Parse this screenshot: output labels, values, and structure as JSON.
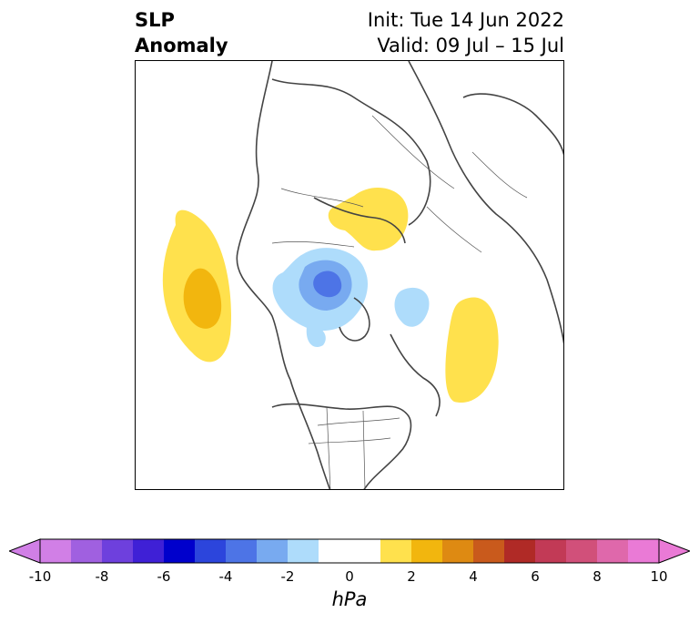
{
  "title": {
    "left_line1": "SLP",
    "left_line2": "Anomaly",
    "right_line1": "Init: Tue 14 Jun 2022",
    "right_line2": "Valid: 09 Jul – 15 Jul"
  },
  "colorbar": {
    "unit": "hPa",
    "range": [
      -10,
      10
    ],
    "tick_labels": [
      "-10",
      "-8",
      "-6",
      "-4",
      "-2",
      "0",
      "2",
      "4",
      "6",
      "8",
      "10"
    ],
    "bins": [
      {
        "from": -10,
        "to": -9,
        "color": "#d17fe6"
      },
      {
        "from": -9,
        "to": -8,
        "color": "#a060e0"
      },
      {
        "from": -8,
        "to": -7,
        "color": "#6e40dd"
      },
      {
        "from": -7,
        "to": -6,
        "color": "#3f20d6"
      },
      {
        "from": -6,
        "to": -5,
        "color": "#0000cc"
      },
      {
        "from": -5,
        "to": -4,
        "color": "#2c45dc"
      },
      {
        "from": -4,
        "to": -3,
        "color": "#4d74e6"
      },
      {
        "from": -3,
        "to": -2,
        "color": "#78aaf0"
      },
      {
        "from": -2,
        "to": -1,
        "color": "#aedcfb"
      },
      {
        "from": -1,
        "to": 1,
        "color": "#ffffff"
      },
      {
        "from": 1,
        "to": 2,
        "color": "#ffe14d"
      },
      {
        "from": 2,
        "to": 3,
        "color": "#f2b60e"
      },
      {
        "from": 3,
        "to": 4,
        "color": "#de8a12"
      },
      {
        "from": 4,
        "to": 5,
        "color": "#c95a1c"
      },
      {
        "from": 5,
        "to": 6,
        "color": "#b02a26"
      },
      {
        "from": 6,
        "to": 7,
        "color": "#c23a56"
      },
      {
        "from": 7,
        "to": 8,
        "color": "#d1507a"
      },
      {
        "from": 8,
        "to": 9,
        "color": "#df68ab"
      },
      {
        "from": 9,
        "to": 10,
        "color": "#ea7ad6"
      }
    ],
    "extend_low_color": "#d17fe6",
    "extend_high_color": "#ea7ad6"
  }
}
